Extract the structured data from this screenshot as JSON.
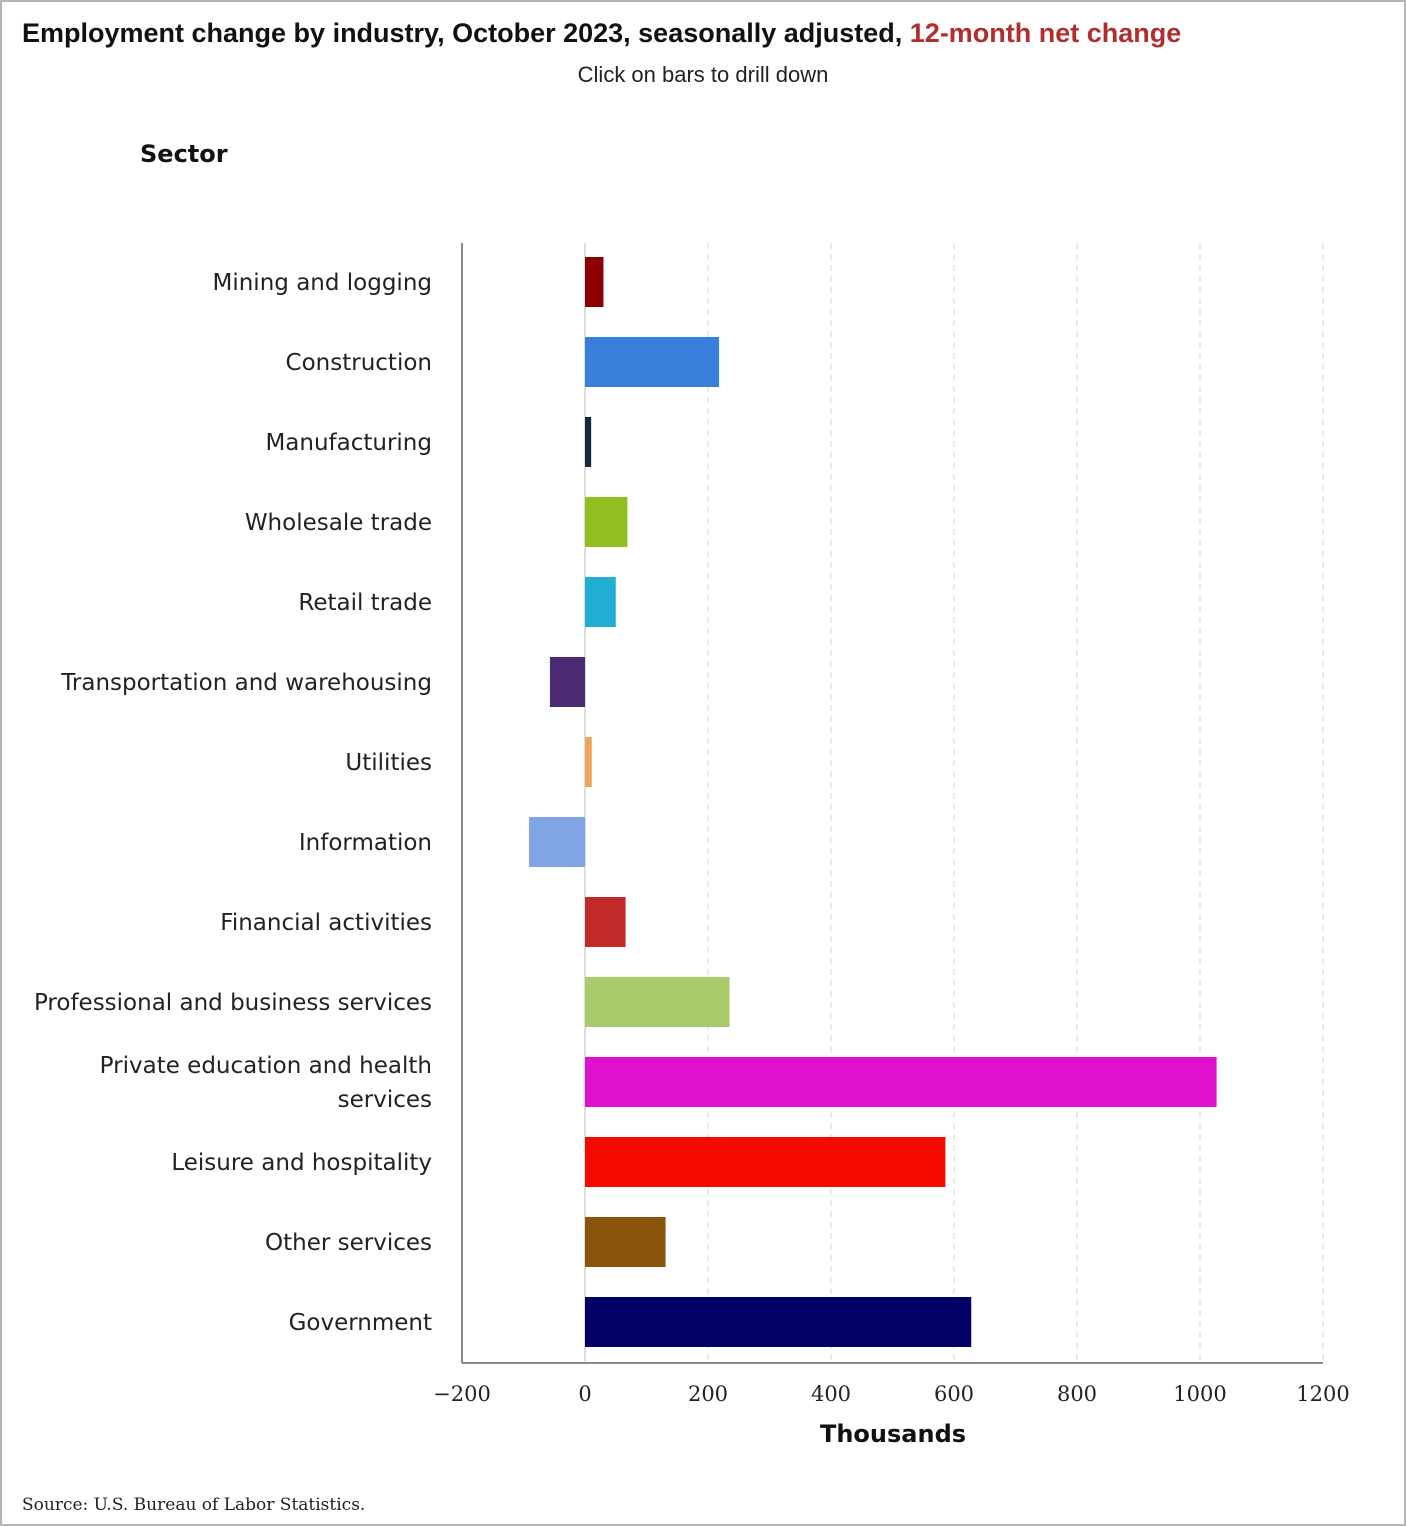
{
  "header": {
    "title": "Employment change by industry, October 2023, seasonally adjusted, ",
    "title_highlight": "12-month net change",
    "subtitle": "Click on bars to drill down"
  },
  "footer": {
    "source": "Source: U.S. Bureau of Labor Statistics."
  },
  "chart_data": {
    "type": "bar",
    "orientation": "horizontal",
    "title": "Employment change by industry, October 2023, seasonally adjusted, 12-month net change",
    "subtitle": "Click on bars to drill down",
    "ylabel": "Sector",
    "xlabel": "Thousands",
    "xlim": [
      -200,
      1200
    ],
    "xticks": [
      -200,
      0,
      200,
      400,
      600,
      800,
      1000,
      1200
    ],
    "xtick_labels": [
      "−200",
      "0",
      "200",
      "400",
      "600",
      "800",
      "1000",
      "1200"
    ],
    "grid": true,
    "legend": "none",
    "categories": [
      [
        "Mining and logging"
      ],
      [
        "Construction"
      ],
      [
        "Manufacturing"
      ],
      [
        "Wholesale trade"
      ],
      [
        "Retail trade"
      ],
      [
        "Transportation and warehousing"
      ],
      [
        "Utilities"
      ],
      [
        "Information"
      ],
      [
        "Financial activities"
      ],
      [
        "Professional and business services"
      ],
      [
        "Private education and health",
        "services"
      ],
      [
        "Leisure and hospitality"
      ],
      [
        "Other services"
      ],
      [
        "Government"
      ]
    ],
    "values": [
      30,
      218,
      10,
      69,
      50,
      -57,
      11,
      -91,
      66,
      235,
      1027,
      586,
      131,
      628
    ],
    "colors": [
      "#8b0000",
      "#3a7edc",
      "#142840",
      "#91bf1f",
      "#21aed2",
      "#4a2a72",
      "#f0a35a",
      "#80a4e6",
      "#c22a2a",
      "#a9cb6b",
      "#e010cf",
      "#f50a00",
      "#8a540c",
      "#020266"
    ]
  }
}
